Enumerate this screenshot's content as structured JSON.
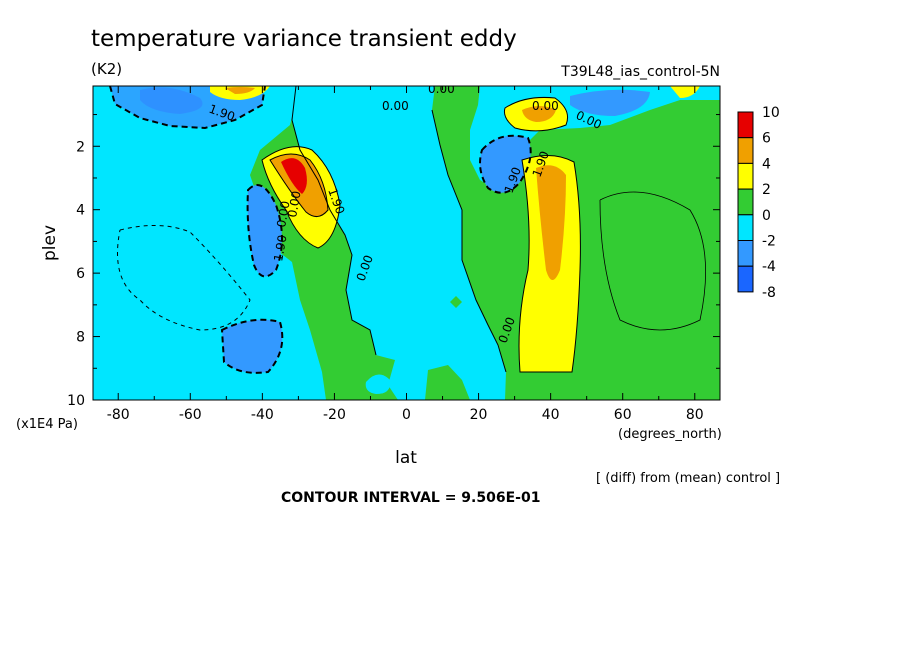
{
  "chart_data": {
    "type": "heatmap",
    "title": "temperature variance transient eddy",
    "units": "(K2)",
    "run_label": "T39L48_ias_control-5N",
    "xlabel": "lat",
    "x_units": "(degrees_north)",
    "ylabel": "plev",
    "y_units": "(x1E4 Pa)",
    "xlim": [
      -87,
      87
    ],
    "ylim": [
      10,
      0.1
    ],
    "x_ticks": [
      -80,
      -60,
      -40,
      -20,
      0,
      20,
      40,
      60,
      80
    ],
    "x_tick_labels": [
      "-80",
      "-60",
      "-40",
      "-20",
      "0",
      "20",
      "40",
      "60",
      "80"
    ],
    "y_ticks": [
      2,
      4,
      6,
      8,
      10
    ],
    "y_tick_labels": [
      "2",
      "4",
      "6",
      "8",
      "10"
    ],
    "colorbar": {
      "levels": [
        "10",
        "6",
        "4",
        "2",
        "0",
        "-2",
        "-4",
        "-8"
      ],
      "colors": [
        "#e60000",
        "#f0a000",
        "#ffff00",
        "#33cc33",
        "#00e6ff",
        "#3399ff",
        "#1a66ff"
      ]
    },
    "contour_labels": [
      "0.00",
      "0.00",
      "0.00",
      "1.90",
      "1.90",
      "0.00",
      "0.00",
      "1.90",
      "1.90",
      "0.00",
      "0.00",
      "1.90",
      "0.00"
    ],
    "regions": [
      {
        "name": "sh-upper-negative",
        "level": -4,
        "lat": [
          -80,
          -62
        ],
        "plev": [
          0.1,
          1.2
        ]
      },
      {
        "name": "sh-upper-negative-2",
        "level": -2,
        "lat": [
          -85,
          -40
        ],
        "plev": [
          0.1,
          1.6
        ]
      },
      {
        "name": "sh-jet-positive",
        "level": 4,
        "lat": [
          -35,
          -25
        ],
        "plev": [
          2.2,
          4.3
        ]
      },
      {
        "name": "sh-jet-peak",
        "level": 6,
        "lat": [
          -34,
          -30
        ],
        "plev": [
          2.4,
          3.2
        ]
      },
      {
        "name": "sh-lower-negative",
        "level": -4,
        "lat": [
          -50,
          -34
        ],
        "plev": [
          7.5,
          9.0
        ]
      },
      {
        "name": "nh-upper-positive",
        "level": 4,
        "lat": [
          32,
          45
        ],
        "plev": [
          0.6,
          1.5
        ]
      },
      {
        "name": "nh-jet-negative",
        "level": -4,
        "lat": [
          24,
          36
        ],
        "plev": [
          1.7,
          3.3
        ]
      },
      {
        "name": "nh-column-positive",
        "level": 4,
        "lat": [
          37,
          44
        ],
        "plev": [
          2.8,
          7.5
        ]
      },
      {
        "name": "tropics-negative",
        "level": -2,
        "lat": [
          -18,
          20
        ],
        "plev": [
          0.1,
          10
        ]
      }
    ],
    "contour_interval_text": "CONTOUR INTERVAL = 9.506E-01",
    "diff_note": "[ (diff) from (mean) control ]"
  }
}
